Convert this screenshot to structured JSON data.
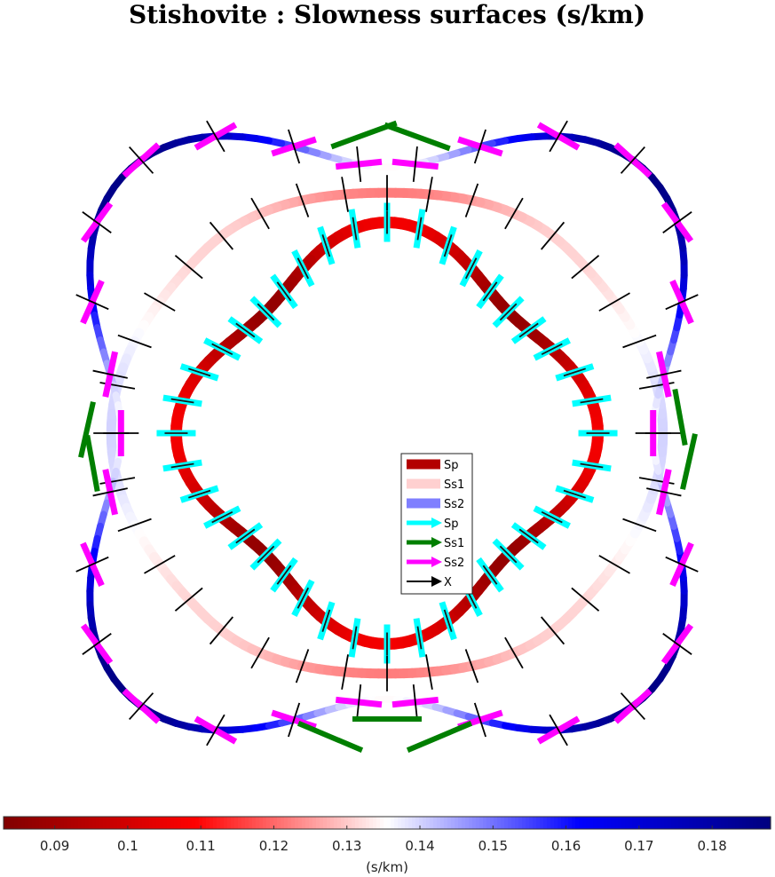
{
  "chart_data": {
    "type": "polar slowness surfaces",
    "title": "Stishovite : Slowness surfaces (s/km)",
    "colorbar": {
      "label": "(s/km)",
      "range": [
        0.083,
        0.188
      ],
      "ticks": [
        "0.09",
        "0.1",
        "0.11",
        "0.12",
        "0.13",
        "0.14",
        "0.15",
        "0.16",
        "0.17",
        "0.18"
      ],
      "colormap": [
        "#800000",
        "#ff0000",
        "#ffffff",
        "#0000ff",
        "#00007f"
      ]
    },
    "legend": [
      {
        "label": "Sp",
        "kind": "line",
        "color": "#b30000"
      },
      {
        "label": "Ss1",
        "kind": "line",
        "color": "#ffd0d0"
      },
      {
        "label": "Ss2",
        "kind": "line",
        "color": "#7f7fff"
      },
      {
        "label": "Sp",
        "kind": "arrow",
        "color": "#00ffff"
      },
      {
        "label": "Ss1",
        "kind": "arrow",
        "color": "#007f00"
      },
      {
        "label": "Ss2",
        "kind": "arrow",
        "color": "#ff00ff"
      },
      {
        "label": "X",
        "kind": "arrow",
        "color": "#000000"
      }
    ],
    "series": [
      {
        "name": "Sp",
        "angle_deg": [
          0,
          45,
          90,
          135,
          180,
          225,
          270,
          315
        ],
        "slowness": [
          0.107,
          0.087,
          0.107,
          0.087,
          0.107,
          0.087,
          0.107,
          0.087
        ]
      },
      {
        "name": "Ss1",
        "angle_deg": [
          0,
          45,
          90,
          135,
          180,
          225,
          270,
          315
        ],
        "slowness": [
          0.14,
          0.131,
          0.122,
          0.131,
          0.14,
          0.131,
          0.122,
          0.131
        ]
      },
      {
        "name": "Ss2",
        "angle_deg": [
          0,
          45,
          90,
          135,
          180,
          225,
          270,
          315
        ],
        "slowness": [
          0.135,
          0.187,
          0.135,
          0.187,
          0.135,
          0.187,
          0.135,
          0.187
        ]
      }
    ]
  }
}
